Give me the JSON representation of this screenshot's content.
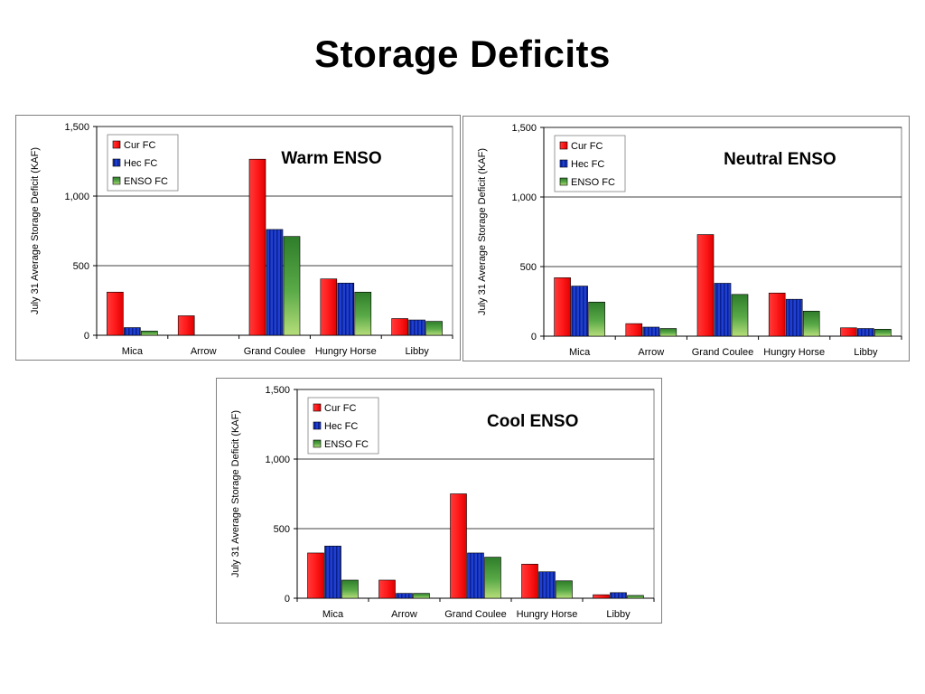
{
  "slide": {
    "title": "Storage Deficits"
  },
  "colors": {
    "cur": "#ff1a1a",
    "hec": "#1f3fd1",
    "enso": "#3f9a3a",
    "grid": "#000000",
    "frame": "#808080"
  },
  "chart_data": [
    {
      "type": "bar",
      "title": "",
      "annotation": "Warm ENSO",
      "xlabel": "",
      "ylabel": "July 31 Average Storage Deficit (KAF)",
      "categories": [
        "Mica",
        "Arrow",
        "Grand Coulee",
        "Hungry Horse",
        "Libby"
      ],
      "series": [
        {
          "name": "Cur FC",
          "values": [
            310,
            140,
            1265,
            405,
            120
          ]
        },
        {
          "name": "Hec FC",
          "values": [
            55,
            0,
            760,
            375,
            110
          ]
        },
        {
          "name": "ENSO FC",
          "values": [
            30,
            0,
            710,
            310,
            100
          ]
        }
      ],
      "ylim": [
        0,
        1500
      ],
      "yticks": [
        0,
        500,
        1000,
        1500
      ],
      "ytick_labels": [
        "0",
        "500",
        "1,000",
        "1,500"
      ],
      "grid": true,
      "legend": "top-left"
    },
    {
      "type": "bar",
      "title": "",
      "annotation": "Neutral ENSO",
      "xlabel": "",
      "ylabel": "July 31 Average Storage Deficit (KAF)",
      "categories": [
        "Mica",
        "Arrow",
        "Grand Coulee",
        "Hungry Horse",
        "Libby"
      ],
      "series": [
        {
          "name": "Cur FC",
          "values": [
            420,
            90,
            730,
            310,
            60
          ]
        },
        {
          "name": "Hec FC",
          "values": [
            360,
            65,
            380,
            265,
            55
          ]
        },
        {
          "name": "ENSO FC",
          "values": [
            245,
            55,
            300,
            180,
            50
          ]
        }
      ],
      "ylim": [
        0,
        1500
      ],
      "yticks": [
        0,
        500,
        1000,
        1500
      ],
      "ytick_labels": [
        "0",
        "500",
        "1,000",
        "1,500"
      ],
      "grid": true,
      "legend": "top-left"
    },
    {
      "type": "bar",
      "title": "",
      "annotation": "Cool ENSO",
      "xlabel": "",
      "ylabel": "July 31 Average Storage Deficit (KAF)",
      "categories": [
        "Mica",
        "Arrow",
        "Grand Coulee",
        "Hungry Horse",
        "Libby"
      ],
      "series": [
        {
          "name": "Cur FC",
          "values": [
            325,
            130,
            750,
            245,
            25
          ]
        },
        {
          "name": "Hec FC",
          "values": [
            375,
            35,
            325,
            190,
            40
          ]
        },
        {
          "name": "ENSO FC",
          "values": [
            130,
            35,
            295,
            125,
            20
          ]
        }
      ],
      "ylim": [
        0,
        1500
      ],
      "yticks": [
        0,
        500,
        1000,
        1500
      ],
      "ytick_labels": [
        "0",
        "500",
        "1,000",
        "1,500"
      ],
      "grid": true,
      "legend": "top-left"
    }
  ]
}
